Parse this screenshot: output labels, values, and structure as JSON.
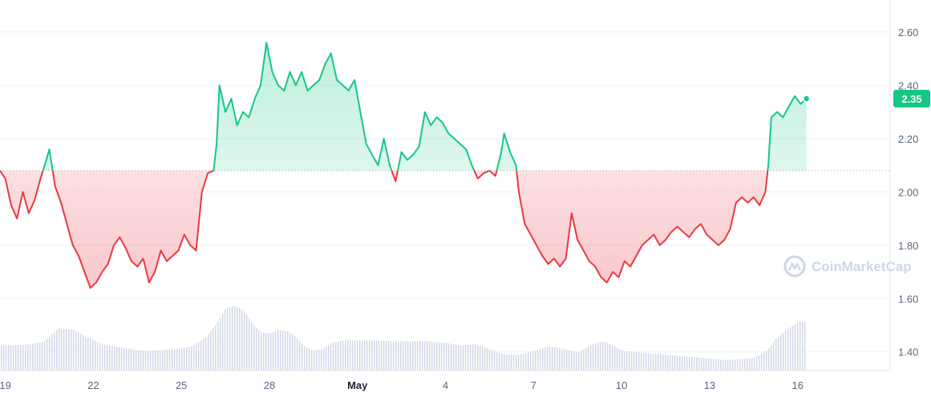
{
  "chart_data": {
    "type": "area",
    "baseline_value": 2.08,
    "ylim": [
      1.33,
      2.72
    ],
    "y_ticks": [
      "2.60",
      "2.40",
      "2.20",
      "2.00",
      "1.80",
      "1.60",
      "1.40"
    ],
    "y_tick_values": [
      2.6,
      2.4,
      2.2,
      2.0,
      1.8,
      1.6,
      1.4
    ],
    "x_range": [
      18.82,
      49.15
    ],
    "x_ticks": [
      {
        "label": "19",
        "x": 19
      },
      {
        "label": "22",
        "x": 22
      },
      {
        "label": "25",
        "x": 25
      },
      {
        "label": "28",
        "x": 28
      },
      {
        "label": "May",
        "x": 31,
        "bold": true
      },
      {
        "label": "4",
        "x": 34
      },
      {
        "label": "7",
        "x": 37
      },
      {
        "label": "10",
        "x": 40
      },
      {
        "label": "13",
        "x": 43
      },
      {
        "label": "16",
        "x": 46
      }
    ],
    "current_price_label": "2.35",
    "current_price": 2.35,
    "colors": {
      "up": "#16c784",
      "down": "#ea3943",
      "volume": "#cfd6e4",
      "grid": "#eff2f5",
      "axis": "#e8ebf0"
    },
    "price": [
      [
        18.82,
        2.08
      ],
      [
        19.0,
        2.05
      ],
      [
        19.2,
        1.95
      ],
      [
        19.4,
        1.9
      ],
      [
        19.6,
        2.0
      ],
      [
        19.8,
        1.92
      ],
      [
        20.0,
        1.97
      ],
      [
        20.2,
        2.05
      ],
      [
        20.4,
        2.12
      ],
      [
        20.5,
        2.16
      ],
      [
        20.7,
        2.02
      ],
      [
        20.9,
        1.96
      ],
      [
        21.1,
        1.88
      ],
      [
        21.3,
        1.8
      ],
      [
        21.5,
        1.76
      ],
      [
        21.7,
        1.7
      ],
      [
        21.9,
        1.64
      ],
      [
        22.1,
        1.66
      ],
      [
        22.3,
        1.7
      ],
      [
        22.5,
        1.73
      ],
      [
        22.7,
        1.8
      ],
      [
        22.9,
        1.83
      ],
      [
        23.1,
        1.79
      ],
      [
        23.3,
        1.74
      ],
      [
        23.5,
        1.72
      ],
      [
        23.7,
        1.75
      ],
      [
        23.9,
        1.66
      ],
      [
        24.1,
        1.7
      ],
      [
        24.3,
        1.78
      ],
      [
        24.5,
        1.74
      ],
      [
        24.7,
        1.76
      ],
      [
        24.9,
        1.78
      ],
      [
        25.1,
        1.84
      ],
      [
        25.3,
        1.8
      ],
      [
        25.5,
        1.78
      ],
      [
        25.7,
        2.0
      ],
      [
        25.9,
        2.07
      ],
      [
        26.1,
        2.08
      ],
      [
        26.2,
        2.18
      ],
      [
        26.3,
        2.4
      ],
      [
        26.5,
        2.3
      ],
      [
        26.7,
        2.35
      ],
      [
        26.9,
        2.25
      ],
      [
        27.1,
        2.3
      ],
      [
        27.3,
        2.28
      ],
      [
        27.5,
        2.35
      ],
      [
        27.7,
        2.4
      ],
      [
        27.9,
        2.56
      ],
      [
        28.1,
        2.45
      ],
      [
        28.3,
        2.4
      ],
      [
        28.5,
        2.38
      ],
      [
        28.7,
        2.45
      ],
      [
        28.9,
        2.4
      ],
      [
        29.1,
        2.45
      ],
      [
        29.3,
        2.38
      ],
      [
        29.5,
        2.4
      ],
      [
        29.7,
        2.42
      ],
      [
        29.9,
        2.48
      ],
      [
        30.1,
        2.52
      ],
      [
        30.3,
        2.42
      ],
      [
        30.5,
        2.4
      ],
      [
        30.7,
        2.38
      ],
      [
        30.9,
        2.42
      ],
      [
        31.1,
        2.3
      ],
      [
        31.3,
        2.18
      ],
      [
        31.5,
        2.14
      ],
      [
        31.7,
        2.1
      ],
      [
        31.9,
        2.2
      ],
      [
        32.1,
        2.1
      ],
      [
        32.3,
        2.04
      ],
      [
        32.5,
        2.15
      ],
      [
        32.7,
        2.12
      ],
      [
        32.9,
        2.14
      ],
      [
        33.1,
        2.17
      ],
      [
        33.3,
        2.3
      ],
      [
        33.5,
        2.25
      ],
      [
        33.7,
        2.28
      ],
      [
        33.9,
        2.26
      ],
      [
        34.1,
        2.22
      ],
      [
        34.3,
        2.2
      ],
      [
        34.5,
        2.18
      ],
      [
        34.7,
        2.16
      ],
      [
        34.9,
        2.1
      ],
      [
        35.1,
        2.05
      ],
      [
        35.3,
        2.07
      ],
      [
        35.5,
        2.08
      ],
      [
        35.7,
        2.06
      ],
      [
        35.9,
        2.15
      ],
      [
        36.0,
        2.22
      ],
      [
        36.2,
        2.15
      ],
      [
        36.4,
        2.1
      ],
      [
        36.5,
        2.0
      ],
      [
        36.7,
        1.88
      ],
      [
        36.9,
        1.84
      ],
      [
        37.1,
        1.8
      ],
      [
        37.3,
        1.76
      ],
      [
        37.5,
        1.73
      ],
      [
        37.7,
        1.75
      ],
      [
        37.9,
        1.72
      ],
      [
        38.1,
        1.75
      ],
      [
        38.3,
        1.92
      ],
      [
        38.5,
        1.82
      ],
      [
        38.7,
        1.78
      ],
      [
        38.9,
        1.74
      ],
      [
        39.1,
        1.72
      ],
      [
        39.3,
        1.68
      ],
      [
        39.5,
        1.66
      ],
      [
        39.7,
        1.7
      ],
      [
        39.9,
        1.68
      ],
      [
        40.1,
        1.74
      ],
      [
        40.3,
        1.72
      ],
      [
        40.5,
        1.76
      ],
      [
        40.7,
        1.8
      ],
      [
        40.9,
        1.82
      ],
      [
        41.1,
        1.84
      ],
      [
        41.3,
        1.8
      ],
      [
        41.5,
        1.82
      ],
      [
        41.7,
        1.85
      ],
      [
        41.9,
        1.87
      ],
      [
        42.1,
        1.85
      ],
      [
        42.3,
        1.83
      ],
      [
        42.5,
        1.86
      ],
      [
        42.7,
        1.88
      ],
      [
        42.9,
        1.84
      ],
      [
        43.1,
        1.82
      ],
      [
        43.3,
        1.8
      ],
      [
        43.5,
        1.82
      ],
      [
        43.7,
        1.86
      ],
      [
        43.9,
        1.96
      ],
      [
        44.1,
        1.98
      ],
      [
        44.3,
        1.96
      ],
      [
        44.5,
        1.98
      ],
      [
        44.7,
        1.95
      ],
      [
        44.9,
        2.0
      ],
      [
        45.0,
        2.1
      ],
      [
        45.1,
        2.28
      ],
      [
        45.3,
        2.3
      ],
      [
        45.5,
        2.28
      ],
      [
        45.7,
        2.32
      ],
      [
        45.9,
        2.36
      ],
      [
        46.1,
        2.33
      ],
      [
        46.3,
        2.35
      ]
    ],
    "volume": [
      [
        18.82,
        0.4
      ],
      [
        19.3,
        0.38
      ],
      [
        19.8,
        0.4
      ],
      [
        20.3,
        0.44
      ],
      [
        20.8,
        0.64
      ],
      [
        21.3,
        0.62
      ],
      [
        21.8,
        0.5
      ],
      [
        22.3,
        0.4
      ],
      [
        22.8,
        0.36
      ],
      [
        23.3,
        0.32
      ],
      [
        23.8,
        0.3
      ],
      [
        24.3,
        0.31
      ],
      [
        24.8,
        0.33
      ],
      [
        25.3,
        0.36
      ],
      [
        25.8,
        0.5
      ],
      [
        26.2,
        0.72
      ],
      [
        26.5,
        0.95
      ],
      [
        26.8,
        0.98
      ],
      [
        27.1,
        0.92
      ],
      [
        27.4,
        0.72
      ],
      [
        27.7,
        0.58
      ],
      [
        28.0,
        0.56
      ],
      [
        28.3,
        0.62
      ],
      [
        28.6,
        0.6
      ],
      [
        28.9,
        0.5
      ],
      [
        29.2,
        0.36
      ],
      [
        29.5,
        0.3
      ],
      [
        29.8,
        0.33
      ],
      [
        30.1,
        0.42
      ],
      [
        30.5,
        0.46
      ],
      [
        31.0,
        0.46
      ],
      [
        31.5,
        0.46
      ],
      [
        32.0,
        0.45
      ],
      [
        32.5,
        0.44
      ],
      [
        33.0,
        0.45
      ],
      [
        33.5,
        0.44
      ],
      [
        34.0,
        0.42
      ],
      [
        34.5,
        0.38
      ],
      [
        35.0,
        0.4
      ],
      [
        35.5,
        0.32
      ],
      [
        36.0,
        0.24
      ],
      [
        36.5,
        0.24
      ],
      [
        37.0,
        0.3
      ],
      [
        37.5,
        0.37
      ],
      [
        38.0,
        0.33
      ],
      [
        38.5,
        0.28
      ],
      [
        38.8,
        0.35
      ],
      [
        39.1,
        0.42
      ],
      [
        39.4,
        0.44
      ],
      [
        39.7,
        0.38
      ],
      [
        40.0,
        0.3
      ],
      [
        40.5,
        0.28
      ],
      [
        41.0,
        0.26
      ],
      [
        41.5,
        0.24
      ],
      [
        42.0,
        0.22
      ],
      [
        42.5,
        0.2
      ],
      [
        43.0,
        0.18
      ],
      [
        43.5,
        0.16
      ],
      [
        44.0,
        0.17
      ],
      [
        44.5,
        0.2
      ],
      [
        44.8,
        0.26
      ],
      [
        45.0,
        0.34
      ],
      [
        45.2,
        0.46
      ],
      [
        45.5,
        0.58
      ],
      [
        45.8,
        0.68
      ],
      [
        46.1,
        0.75
      ],
      [
        46.3,
        0.74
      ]
    ]
  },
  "watermark": {
    "text": "CoinMarketCap",
    "icon": "coinmarketcap-logo-icon"
  }
}
